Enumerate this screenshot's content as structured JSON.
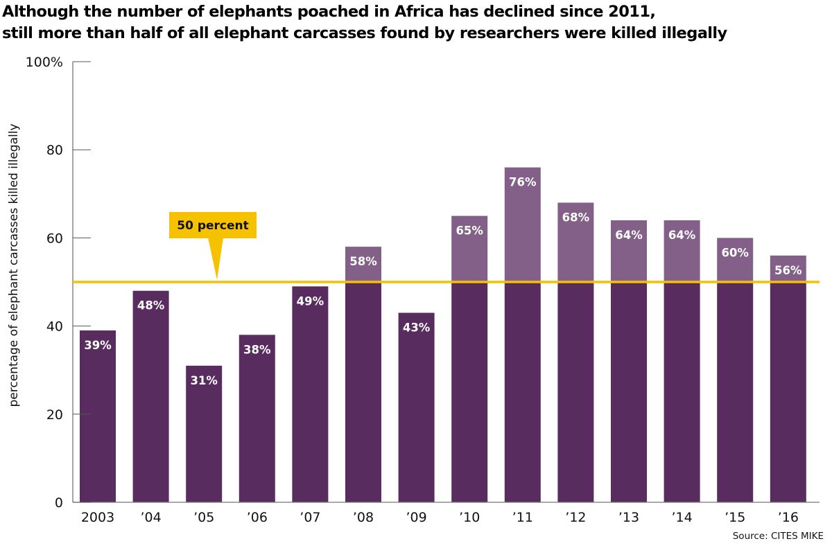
{
  "chart_data": {
    "type": "bar",
    "title_lines": [
      "Although the number of elephants poached in Africa has declined since 2011,",
      "still more than half of all elephant carcasses found by researchers were killed illegally"
    ],
    "xlabel": "",
    "ylabel": "percentage of elephant carcasses killed illegally",
    "ylim": [
      0,
      100
    ],
    "yticks": [
      0,
      20,
      40,
      60,
      80,
      100
    ],
    "ytick_labels": [
      "0",
      "20",
      "40",
      "60",
      "80",
      "100%"
    ],
    "categories": [
      "2003",
      "’04",
      "’05",
      "’06",
      "’07",
      "’08",
      "’09",
      "’10",
      "’11",
      "’12",
      "’13",
      "’14",
      "’15",
      "’16"
    ],
    "values": [
      39,
      48,
      31,
      38,
      49,
      58,
      43,
      65,
      76,
      68,
      64,
      64,
      60,
      56
    ],
    "data_labels": [
      "39%",
      "48%",
      "31%",
      "38%",
      "49%",
      "58%",
      "43%",
      "65%",
      "76%",
      "68%",
      "64%",
      "64%",
      "60%",
      "56%"
    ],
    "reference_line": {
      "value": 50,
      "label": "50 percent",
      "color": "#F6C200"
    },
    "colors": {
      "below_reference": "#582C5E",
      "above_reference": "#826088",
      "axis": "#777777"
    },
    "grid": false,
    "legend": "none",
    "source": "Source: CITES MIKE"
  }
}
